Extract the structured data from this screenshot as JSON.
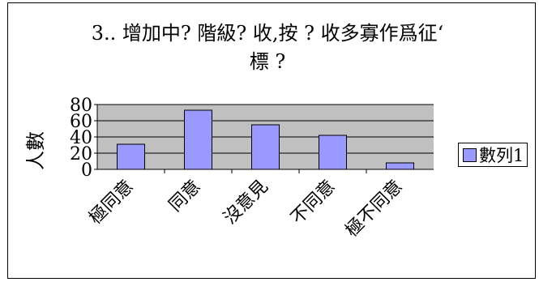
{
  "chart_data": {
    "type": "bar",
    "title_line1": "3.. 增加中?  階級?  收,按    ?  收多寡作爲征‘",
    "title_line2": "標    ?",
    "categories": [
      "極同意",
      "同意",
      "沒意見",
      "不同意",
      "極不同意"
    ],
    "series": [
      {
        "name": "數列1",
        "values": [
          31,
          73,
          55,
          42,
          8
        ]
      }
    ],
    "ylabel": "人數",
    "xlabel": "",
    "ylim": [
      0,
      80
    ],
    "yticks": [
      0,
      20,
      40,
      60,
      80
    ],
    "grid": true,
    "legend_position": "right",
    "colors": {
      "bar": "#9999ff",
      "plot_bg": "#c0c0c0",
      "axis": "#000000"
    }
  }
}
